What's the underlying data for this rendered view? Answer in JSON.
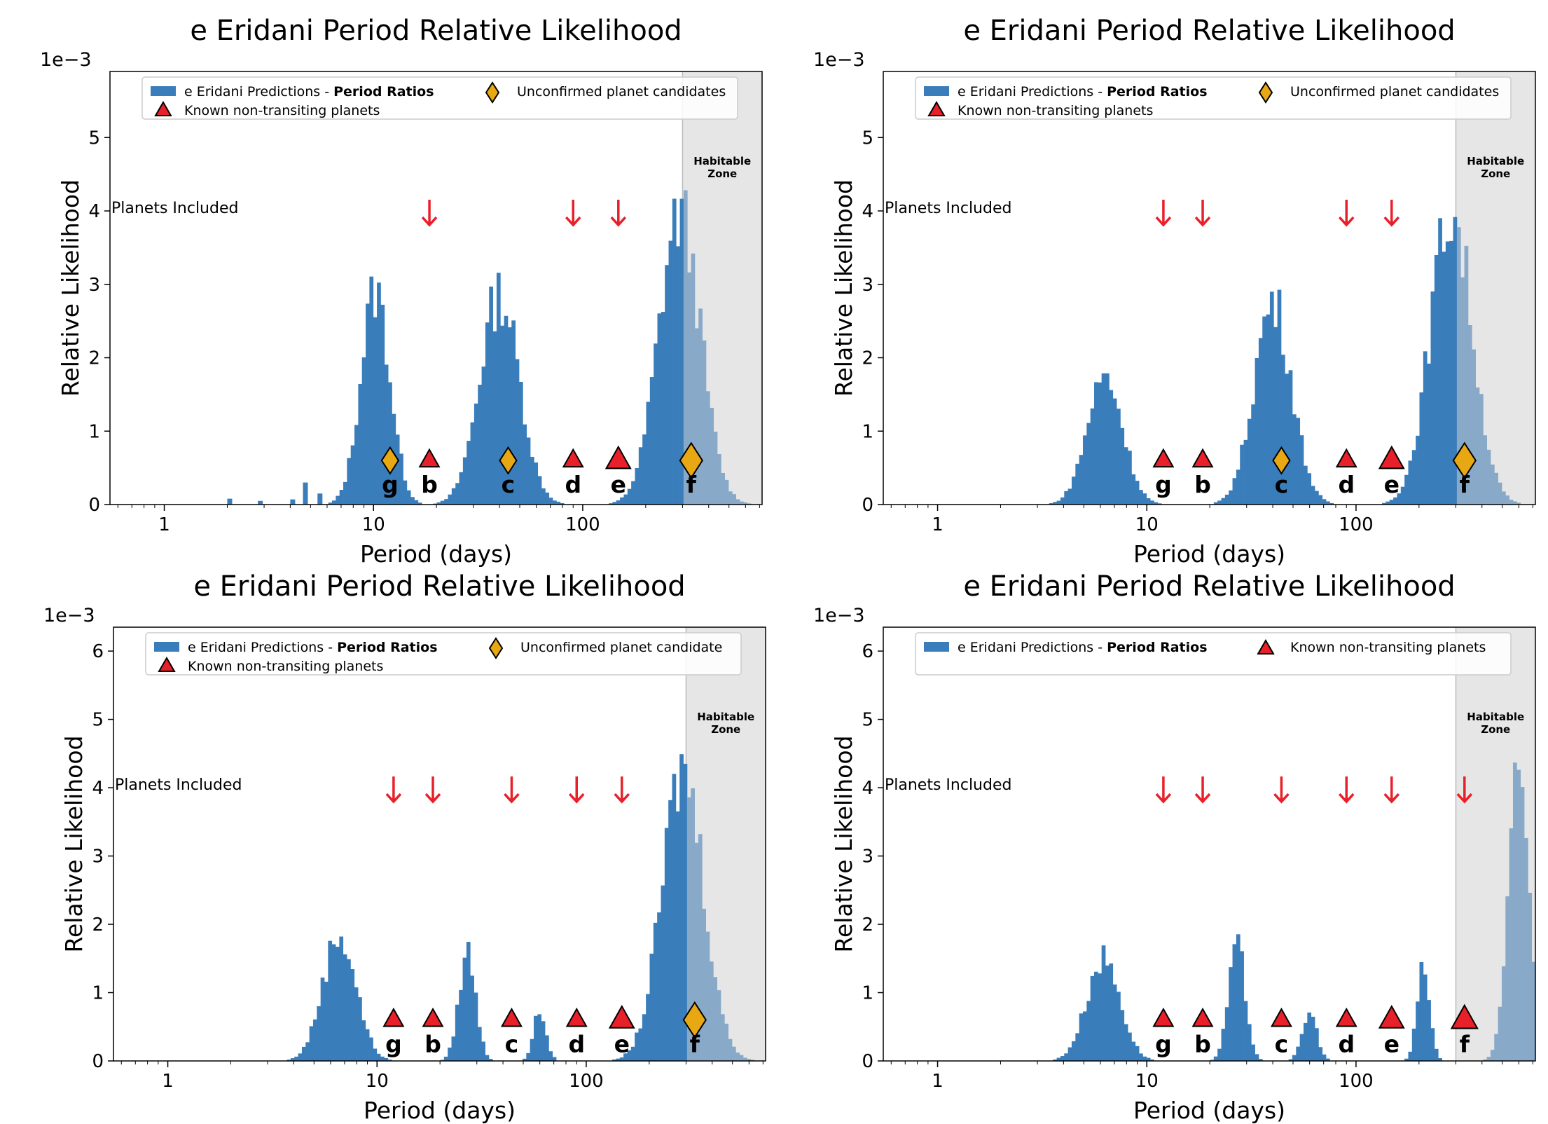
{
  "figure": {
    "hz_label_line1": "Habitable",
    "hz_label_line2": "Zone",
    "planets_included_label": "Planets Included"
  },
  "colors": {
    "bar": "#3a7dbb",
    "bar_hz": "#88a9c8",
    "hz_bg": "#e6e6e6",
    "triangle": "#e8202a",
    "diamond": "#e8a814",
    "arrow": "#e8202a"
  },
  "chart_data": [
    {
      "type": "bar",
      "title": "e Eridani Period Relative Likelihood",
      "xlabel": "Period (days)",
      "ylabel": "Relative Likelihood",
      "xscale": "log",
      "xlim": [
        0.55,
        720
      ],
      "ylim": [
        0,
        5.9
      ],
      "y_multiplier": "1e−3",
      "yticks": [
        0,
        1,
        2,
        3,
        4,
        5
      ],
      "xtick_labels": [
        "1",
        "10",
        "100"
      ],
      "habitable_zone_start": 300,
      "legend": {
        "series": "e Eridani Predictions - ",
        "series_bold": "Period Ratios",
        "known": "Known non-transiting planets",
        "candidate": "Unconfirmed planet candidates"
      },
      "arrows_at_period": [
        18.5,
        90,
        148
      ],
      "known_planets": [
        {
          "label": "g",
          "period": 12
        },
        {
          "label": "b",
          "period": 18.5
        },
        {
          "label": "c",
          "period": 44
        },
        {
          "label": "d",
          "period": 90
        },
        {
          "label": "e",
          "period": 148
        },
        {
          "label": "f",
          "period": 330
        }
      ],
      "candidate_planets": [
        "g",
        "c",
        "f"
      ],
      "peaks": [
        {
          "center": 10.2,
          "width": 0.07,
          "height": 2.9,
          "bins": [
            [
              2.0,
              0.08
            ],
            [
              2.8,
              0.05
            ],
            [
              4.0,
              0.07
            ],
            [
              4.6,
              0.3
            ],
            [
              5.4,
              0.15
            ]
          ]
        },
        {
          "center": 40,
          "width": 0.095,
          "height": 2.85
        },
        {
          "center": 290,
          "width": 0.1,
          "height": 3.95
        }
      ]
    },
    {
      "type": "bar",
      "title": "e Eridani Period Relative Likelihood",
      "xlabel": "Period (days)",
      "ylabel": "Relative Likelihood",
      "xscale": "log",
      "xlim": [
        0.55,
        720
      ],
      "ylim": [
        0,
        5.9
      ],
      "y_multiplier": "1e−3",
      "yticks": [
        0,
        1,
        2,
        3,
        4,
        5
      ],
      "xtick_labels": [
        "1",
        "10",
        "100"
      ],
      "habitable_zone_start": 300,
      "legend": {
        "series": "e Eridani Predictions - ",
        "series_bold": "Period Ratios",
        "known": "Known non-transiting planets",
        "candidate": "Unconfirmed planet candidates"
      },
      "arrows_at_period": [
        12,
        18.5,
        90,
        148
      ],
      "known_planets": [
        {
          "label": "g",
          "period": 12
        },
        {
          "label": "b",
          "period": 18.5
        },
        {
          "label": "c",
          "period": 44
        },
        {
          "label": "d",
          "period": 90
        },
        {
          "label": "e",
          "period": 148
        },
        {
          "label": "f",
          "period": 330
        }
      ],
      "candidate_planets": [
        "c",
        "f"
      ],
      "peaks": [
        {
          "center": 6.3,
          "width": 0.085,
          "height": 1.75
        },
        {
          "center": 40,
          "width": 0.09,
          "height": 2.75
        },
        {
          "center": 285,
          "width": 0.1,
          "height": 4.0
        }
      ]
    },
    {
      "type": "bar",
      "title": "e Eridani Period Relative Likelihood",
      "xlabel": "Period (days)",
      "ylabel": "Relative Likelihood",
      "xscale": "log",
      "xlim": [
        0.55,
        720
      ],
      "ylim": [
        0,
        6.35
      ],
      "y_multiplier": "1e−3",
      "yticks": [
        0,
        1,
        2,
        3,
        4,
        5,
        6
      ],
      "xtick_labels": [
        "1",
        "10",
        "100"
      ],
      "habitable_zone_start": 300,
      "legend": {
        "series": "e Eridani Predictions - ",
        "series_bold": "Period Ratios",
        "known": "Known non-transiting planets",
        "candidate": "Unconfirmed planet candidate"
      },
      "arrows_at_period": [
        12,
        18.5,
        44,
        90,
        148
      ],
      "known_planets": [
        {
          "label": "g",
          "period": 12
        },
        {
          "label": "b",
          "period": 18.5
        },
        {
          "label": "c",
          "period": 44
        },
        {
          "label": "d",
          "period": 90
        },
        {
          "label": "e",
          "period": 148
        },
        {
          "label": "f",
          "period": 330
        }
      ],
      "candidate_planets": [
        "f"
      ],
      "peaks": [
        {
          "center": 6.6,
          "width": 0.08,
          "height": 1.85
        },
        {
          "center": 27,
          "width": 0.04,
          "height": 1.6
        },
        {
          "center": 60,
          "width": 0.03,
          "height": 0.72
        },
        {
          "center": 290,
          "width": 0.1,
          "height": 4.25
        }
      ]
    },
    {
      "type": "bar",
      "title": "e Eridani Period Relative Likelihood",
      "xlabel": "Period (days)",
      "ylabel": "Relative Likelihood",
      "xscale": "log",
      "xlim": [
        0.55,
        720
      ],
      "ylim": [
        0,
        6.35
      ],
      "y_multiplier": "1e−3",
      "yticks": [
        0,
        1,
        2,
        3,
        4,
        5,
        6
      ],
      "xtick_labels": [
        "1",
        "10",
        "100"
      ],
      "habitable_zone_start": 300,
      "legend": {
        "series": "e Eridani Predictions - ",
        "series_bold": "Period Ratios",
        "known": "Known non-transiting planets",
        "candidate": ""
      },
      "arrows_at_period": [
        12,
        18.5,
        44,
        90,
        148,
        330
      ],
      "known_planets": [
        {
          "label": "g",
          "period": 12
        },
        {
          "label": "b",
          "period": 18.5
        },
        {
          "label": "c",
          "period": 44
        },
        {
          "label": "d",
          "period": 90
        },
        {
          "label": "e",
          "period": 148
        },
        {
          "label": "f",
          "period": 330
        }
      ],
      "candidate_planets": [],
      "peaks": [
        {
          "center": 6.2,
          "width": 0.08,
          "height": 1.5
        },
        {
          "center": 27,
          "width": 0.04,
          "height": 1.65
        },
        {
          "center": 60,
          "width": 0.035,
          "height": 0.7
        },
        {
          "center": 210,
          "width": 0.03,
          "height": 1.35
        },
        {
          "center": 600,
          "width": 0.05,
          "height": 4.1
        }
      ]
    }
  ]
}
